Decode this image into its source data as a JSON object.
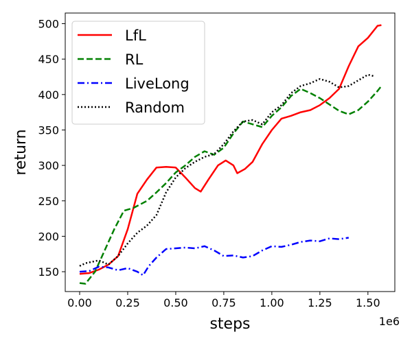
{
  "chart_data": {
    "type": "line",
    "title": "",
    "xlabel": "steps",
    "ylabel": "return",
    "x_offset_label": "1e6",
    "xlim": [
      -0.075,
      1.64
    ],
    "ylim": [
      122,
      515
    ],
    "x_ticks": [
      0.0,
      0.25,
      0.5,
      0.75,
      1.0,
      1.25,
      1.5
    ],
    "x_tick_labels": [
      "0.00",
      "0.25",
      "0.50",
      "0.75",
      "1.00",
      "1.25",
      "1.50"
    ],
    "y_ticks": [
      150,
      200,
      250,
      300,
      350,
      400,
      450,
      500
    ],
    "y_tick_labels": [
      "150",
      "200",
      "250",
      "300",
      "350",
      "400",
      "450",
      "500"
    ],
    "grid": false,
    "legend_position": "top-left",
    "series": [
      {
        "name": "LfL",
        "color": "#ff0000",
        "dash": "solid",
        "points": [
          [
            0.0,
            147
          ],
          [
            0.05,
            148
          ],
          [
            0.1,
            153
          ],
          [
            0.15,
            160
          ],
          [
            0.2,
            172
          ],
          [
            0.25,
            210
          ],
          [
            0.3,
            260
          ],
          [
            0.35,
            280
          ],
          [
            0.4,
            297
          ],
          [
            0.45,
            298
          ],
          [
            0.5,
            297
          ],
          [
            0.55,
            283
          ],
          [
            0.6,
            268
          ],
          [
            0.63,
            263
          ],
          [
            0.67,
            280
          ],
          [
            0.72,
            300
          ],
          [
            0.76,
            307
          ],
          [
            0.8,
            300
          ],
          [
            0.82,
            289
          ],
          [
            0.86,
            295
          ],
          [
            0.9,
            305
          ],
          [
            0.95,
            330
          ],
          [
            1.0,
            350
          ],
          [
            1.05,
            366
          ],
          [
            1.1,
            370
          ],
          [
            1.15,
            375
          ],
          [
            1.2,
            378
          ],
          [
            1.25,
            385
          ],
          [
            1.3,
            395
          ],
          [
            1.35,
            408
          ],
          [
            1.4,
            440
          ],
          [
            1.45,
            468
          ],
          [
            1.5,
            480
          ],
          [
            1.55,
            497
          ],
          [
            1.57,
            498
          ]
        ]
      },
      {
        "name": "RL",
        "color": "#008000",
        "dash": "dashed",
        "points": [
          [
            0.0,
            134
          ],
          [
            0.03,
            133
          ],
          [
            0.08,
            150
          ],
          [
            0.13,
            180
          ],
          [
            0.18,
            210
          ],
          [
            0.23,
            236
          ],
          [
            0.28,
            240
          ],
          [
            0.35,
            250
          ],
          [
            0.4,
            262
          ],
          [
            0.45,
            275
          ],
          [
            0.5,
            290
          ],
          [
            0.55,
            300
          ],
          [
            0.6,
            312
          ],
          [
            0.65,
            320
          ],
          [
            0.7,
            315
          ],
          [
            0.75,
            325
          ],
          [
            0.8,
            345
          ],
          [
            0.85,
            362
          ],
          [
            0.9,
            358
          ],
          [
            0.95,
            354
          ],
          [
            1.0,
            370
          ],
          [
            1.05,
            382
          ],
          [
            1.1,
            398
          ],
          [
            1.15,
            408
          ],
          [
            1.2,
            402
          ],
          [
            1.25,
            395
          ],
          [
            1.3,
            386
          ],
          [
            1.35,
            377
          ],
          [
            1.4,
            372
          ],
          [
            1.45,
            378
          ],
          [
            1.5,
            390
          ],
          [
            1.55,
            405
          ],
          [
            1.57,
            412
          ]
        ]
      },
      {
        "name": "LiveLong",
        "color": "#0000ff",
        "dash": "dashdot",
        "points": [
          [
            0.0,
            150
          ],
          [
            0.05,
            151
          ],
          [
            0.1,
            157
          ],
          [
            0.15,
            156
          ],
          [
            0.2,
            152
          ],
          [
            0.25,
            155
          ],
          [
            0.3,
            150
          ],
          [
            0.33,
            145
          ],
          [
            0.36,
            158
          ],
          [
            0.4,
            170
          ],
          [
            0.45,
            182
          ],
          [
            0.5,
            183
          ],
          [
            0.55,
            184
          ],
          [
            0.6,
            183
          ],
          [
            0.65,
            186
          ],
          [
            0.7,
            180
          ],
          [
            0.75,
            172
          ],
          [
            0.8,
            173
          ],
          [
            0.85,
            170
          ],
          [
            0.9,
            172
          ],
          [
            0.95,
            180
          ],
          [
            1.0,
            186
          ],
          [
            1.05,
            185
          ],
          [
            1.1,
            188
          ],
          [
            1.15,
            192
          ],
          [
            1.2,
            194
          ],
          [
            1.25,
            193
          ],
          [
            1.3,
            197
          ],
          [
            1.35,
            196
          ],
          [
            1.4,
            198
          ]
        ]
      },
      {
        "name": "Random",
        "color": "#000000",
        "dash": "dotted",
        "points": [
          [
            0.0,
            158
          ],
          [
            0.03,
            162
          ],
          [
            0.1,
            166
          ],
          [
            0.15,
            160
          ],
          [
            0.2,
            172
          ],
          [
            0.25,
            190
          ],
          [
            0.3,
            205
          ],
          [
            0.35,
            215
          ],
          [
            0.4,
            230
          ],
          [
            0.45,
            262
          ],
          [
            0.5,
            283
          ],
          [
            0.55,
            296
          ],
          [
            0.6,
            305
          ],
          [
            0.65,
            312
          ],
          [
            0.7,
            316
          ],
          [
            0.75,
            330
          ],
          [
            0.8,
            348
          ],
          [
            0.85,
            362
          ],
          [
            0.9,
            364
          ],
          [
            0.95,
            358
          ],
          [
            1.0,
            375
          ],
          [
            1.05,
            385
          ],
          [
            1.1,
            402
          ],
          [
            1.15,
            412
          ],
          [
            1.2,
            416
          ],
          [
            1.25,
            422
          ],
          [
            1.3,
            418
          ],
          [
            1.35,
            410
          ],
          [
            1.4,
            412
          ],
          [
            1.45,
            420
          ],
          [
            1.5,
            428
          ],
          [
            1.53,
            426
          ]
        ]
      }
    ]
  }
}
